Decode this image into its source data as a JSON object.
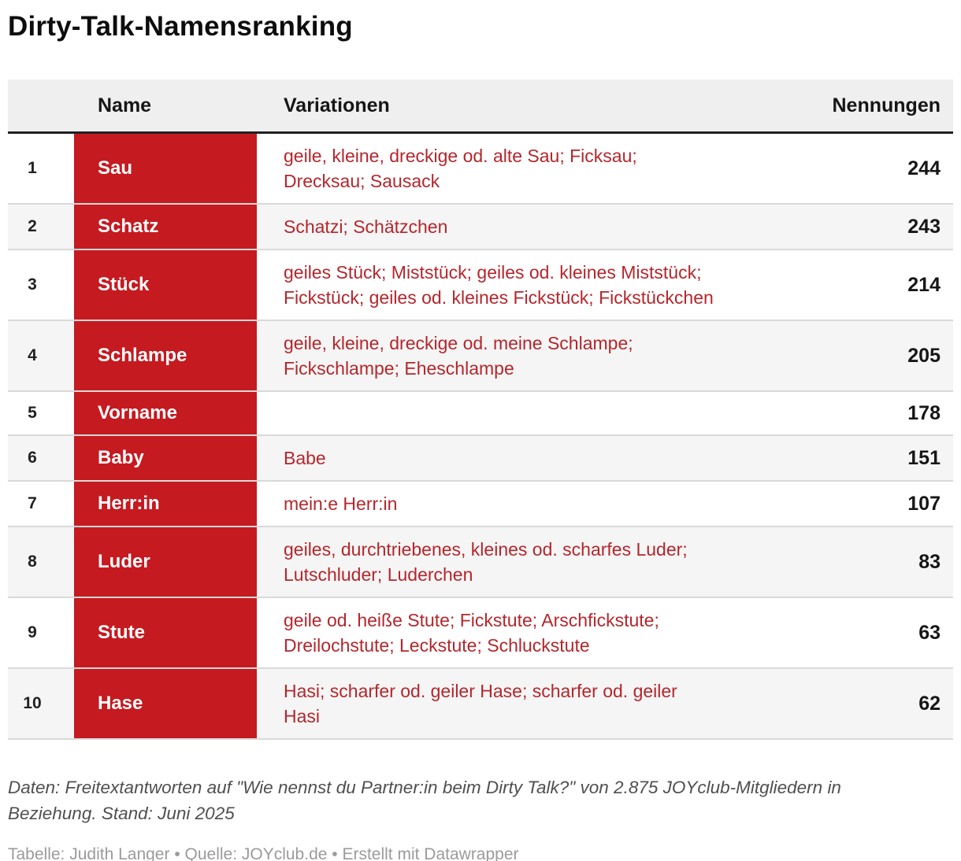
{
  "title": "Dirty-Talk-Namensranking",
  "chart_data": {
    "type": "table",
    "title": "Dirty-Talk-Namensranking",
    "columns": [
      "",
      "Name",
      "Variationen",
      "Nennungen"
    ],
    "rows": [
      {
        "rank": "1",
        "name": "Sau",
        "variations": "geile, kleine, dreckige od. alte Sau; Ficksau; Drecksau; Sausack",
        "mentions": "244"
      },
      {
        "rank": "2",
        "name": "Schatz",
        "variations": "Schatzi; Schätzchen",
        "mentions": "243"
      },
      {
        "rank": "3",
        "name": "Stück",
        "variations": "geiles Stück; Miststück; geiles od. kleines Miststück; Fickstück; geiles od. kleines Fickstück; Fickstückchen",
        "mentions": "214"
      },
      {
        "rank": "4",
        "name": "Schlampe",
        "variations": "geile, kleine, dreckige od. meine Schlampe; Fickschlampe; Eheschlampe",
        "mentions": "205"
      },
      {
        "rank": "5",
        "name": "Vorname",
        "variations": "",
        "mentions": "178"
      },
      {
        "rank": "6",
        "name": "Baby",
        "variations": "Babe",
        "mentions": "151"
      },
      {
        "rank": "7",
        "name": "Herr:in",
        "variations": "mein:e Herr:in",
        "mentions": "107"
      },
      {
        "rank": "8",
        "name": "Luder",
        "variations": "geiles, durchtriebenes, kleines od. scharfes Luder; Lutschluder; Luderchen",
        "mentions": "83"
      },
      {
        "rank": "9",
        "name": "Stute",
        "variations": "geile od. heiße Stute; Fickstute; Arschfickstute; Dreilochstute; Leckstute; Schluckstute",
        "mentions": "63"
      },
      {
        "rank": "10",
        "name": "Hase",
        "variations": "Hasi; scharfer od. geiler Hase; scharfer od. geiler Hasi",
        "mentions": "62"
      }
    ]
  },
  "footer": {
    "notes": "Daten: Freitextantworten auf \"Wie nennst du Partner:in beim Dirty Talk?\" von 2.875 JOYclub-Mitgliedern in Beziehung. Stand: Juni 2025",
    "credit": "Tabelle: Judith Langer • Quelle: JOYclub.de • Erstellt mit Datawrapper"
  },
  "colors": {
    "badge_red": "#c51a20",
    "variation_red": "#b5262c",
    "header_bg": "#efefef",
    "row_alt_bg": "#f5f5f5",
    "border_light": "#d9d9d9",
    "border_dark": "#212121"
  }
}
